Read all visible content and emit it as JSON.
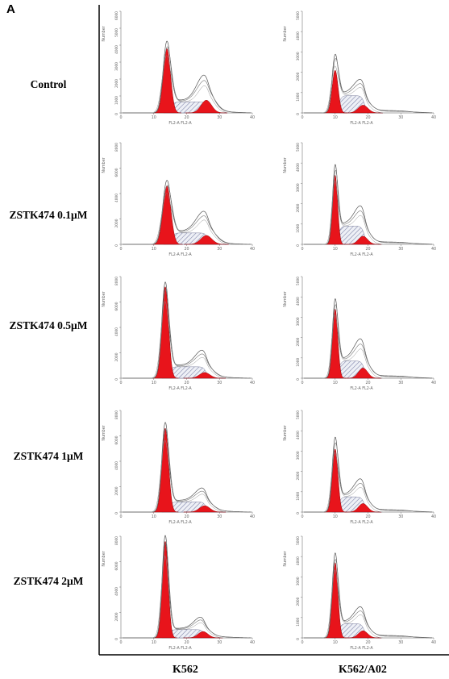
{
  "panel_letter": "A",
  "row_labels": [
    "Control",
    "ZSTK474 0.1μM",
    "ZSTK474 0.5μM",
    "ZSTK474 1μM",
    "ZSTK474 2μM"
  ],
  "column_labels": [
    "K562",
    "K562/A02"
  ],
  "colors": {
    "g1_fill": "#e8141b",
    "g2_fill": "#e8141b",
    "s_hatch": "#7a7fa6",
    "outline": "#555555"
  },
  "chart_data": [
    {
      "type": "area",
      "cell": "K562",
      "treatment": "Control",
      "xlabel": "FL2-A FL2-A",
      "ylabel": "Number",
      "xlim": [
        0,
        40
      ],
      "ylim": [
        0,
        6000
      ],
      "xticks": [
        0,
        10,
        20,
        30,
        40
      ],
      "yticks": [
        0,
        1000,
        2000,
        3000,
        4000,
        5000,
        6000
      ],
      "g1": {
        "mean": 14,
        "sd": 1.1,
        "peak": 3800
      },
      "s": {
        "height": 650
      },
      "g2": {
        "mean": 26,
        "sd": 1.6,
        "peak": 750
      },
      "fit_peak": 4200,
      "fit_g2_peak": 1500
    },
    {
      "type": "area",
      "cell": "K562/A02",
      "treatment": "Control",
      "xlabel": "FL2-A FL2-A",
      "ylabel": "Number",
      "xlim": [
        0,
        40
      ],
      "ylim": [
        0,
        5000
      ],
      "xticks": [
        0,
        10,
        20,
        30,
        40
      ],
      "yticks": [
        0,
        1000,
        2000,
        3000,
        4000,
        5000
      ],
      "g1": {
        "mean": 10,
        "sd": 0.9,
        "peak": 2100
      },
      "s": {
        "height": 850
      },
      "g2": {
        "mean": 18.5,
        "sd": 1.5,
        "peak": 380
      },
      "fit_peak": 2800,
      "fit_g2_peak": 700
    },
    {
      "type": "area",
      "cell": "K562",
      "treatment": "ZSTK474 0.1μM",
      "xlabel": "FL2-A FL2-A",
      "ylabel": "Number",
      "xlim": [
        0,
        40
      ],
      "ylim": [
        0,
        8000
      ],
      "xticks": [
        0,
        10,
        20,
        30,
        40
      ],
      "yticks": [
        0,
        2000,
        4000,
        6000,
        8000
      ],
      "g1": {
        "mean": 14,
        "sd": 1.2,
        "peak": 4600
      },
      "s": {
        "height": 900
      },
      "g2": {
        "mean": 26,
        "sd": 1.7,
        "peak": 700
      },
      "fit_peak": 5000,
      "fit_g2_peak": 1600
    },
    {
      "type": "area",
      "cell": "K562/A02",
      "treatment": "ZSTK474 0.1μM",
      "xlabel": "FL2-A FL2-A",
      "ylabel": "Number",
      "xlim": [
        0,
        40
      ],
      "ylim": [
        0,
        5000
      ],
      "xticks": [
        0,
        10,
        20,
        30,
        40
      ],
      "yticks": [
        0,
        1000,
        2000,
        3000,
        4000,
        5000
      ],
      "g1": {
        "mean": 10,
        "sd": 0.75,
        "peak": 3400
      },
      "s": {
        "height": 900
      },
      "g2": {
        "mean": 18.5,
        "sd": 1.4,
        "peak": 400
      },
      "fit_peak": 3800,
      "fit_g2_peak": 900
    },
    {
      "type": "area",
      "cell": "K562",
      "treatment": "ZSTK474 0.5μM",
      "xlabel": "FL2-A FL2-A",
      "ylabel": "Number",
      "xlim": [
        0,
        40
      ],
      "ylim": [
        0,
        8000
      ],
      "xticks": [
        0,
        10,
        20,
        30,
        40
      ],
      "yticks": [
        0,
        2000,
        4000,
        6000,
        8000
      ],
      "g1": {
        "mean": 13.5,
        "sd": 1.0,
        "peak": 7200
      },
      "s": {
        "height": 900
      },
      "g2": {
        "mean": 25.5,
        "sd": 1.6,
        "peak": 450
      },
      "fit_peak": 7500,
      "fit_g2_peak": 1200
    },
    {
      "type": "area",
      "cell": "K562/A02",
      "treatment": "ZSTK474 0.5μM",
      "xlabel": "FL2-A FL2-A",
      "ylabel": "Number",
      "xlim": [
        0,
        40
      ],
      "ylim": [
        0,
        5000
      ],
      "xticks": [
        0,
        10,
        20,
        30,
        40
      ],
      "yticks": [
        0,
        1000,
        2000,
        3000,
        4000,
        5000
      ],
      "g1": {
        "mean": 10,
        "sd": 0.8,
        "peak": 3400
      },
      "s": {
        "height": 850
      },
      "g2": {
        "mean": 18.5,
        "sd": 1.4,
        "peak": 500
      },
      "fit_peak": 3800,
      "fit_g2_peak": 1000
    },
    {
      "type": "area",
      "cell": "K562",
      "treatment": "ZSTK474 1μM",
      "xlabel": "FL2-A FL2-A",
      "ylabel": "Number",
      "xlim": [
        0,
        40
      ],
      "ylim": [
        0,
        8000
      ],
      "xticks": [
        0,
        10,
        20,
        30,
        40
      ],
      "yticks": [
        0,
        2000,
        4000,
        6000,
        8000
      ],
      "g1": {
        "mean": 13.5,
        "sd": 1.0,
        "peak": 6600
      },
      "s": {
        "height": 800
      },
      "g2": {
        "mean": 25.5,
        "sd": 1.6,
        "peak": 500
      },
      "fit_peak": 7000,
      "fit_g2_peak": 1000
    },
    {
      "type": "area",
      "cell": "K562/A02",
      "treatment": "ZSTK474 1μM",
      "xlabel": "FL2-A FL2-A",
      "ylabel": "Number",
      "xlim": [
        0,
        40
      ],
      "ylim": [
        0,
        5000
      ],
      "xticks": [
        0,
        10,
        20,
        30,
        40
      ],
      "yticks": [
        0,
        1000,
        2000,
        3000,
        4000,
        5000
      ],
      "g1": {
        "mean": 10,
        "sd": 0.85,
        "peak": 3100
      },
      "s": {
        "height": 750
      },
      "g2": {
        "mean": 18.5,
        "sd": 1.4,
        "peak": 420
      },
      "fit_peak": 3600,
      "fit_g2_peak": 800
    },
    {
      "type": "area",
      "cell": "K562",
      "treatment": "ZSTK474 2μM",
      "xlabel": "FL2-A FL2-A",
      "ylabel": "Number",
      "xlim": [
        0,
        40
      ],
      "ylim": [
        0,
        8000
      ],
      "xticks": [
        0,
        10,
        20,
        30,
        40
      ],
      "yticks": [
        0,
        2000,
        4000,
        6000,
        8000
      ],
      "g1": {
        "mean": 13.5,
        "sd": 0.9,
        "peak": 7600
      },
      "s": {
        "height": 650
      },
      "g2": {
        "mean": 25,
        "sd": 1.5,
        "peak": 500
      },
      "fit_peak": 8000,
      "fit_g2_peak": 900
    },
    {
      "type": "area",
      "cell": "K562/A02",
      "treatment": "ZSTK474 2μM",
      "xlabel": "FL2-A FL2-A",
      "ylabel": "Number",
      "xlim": [
        0,
        40
      ],
      "ylim": [
        0,
        5000
      ],
      "xticks": [
        0,
        10,
        20,
        30,
        40
      ],
      "yticks": [
        0,
        1000,
        2000,
        3000,
        4000,
        5000
      ],
      "g1": {
        "mean": 10,
        "sd": 0.85,
        "peak": 3700
      },
      "s": {
        "height": 700
      },
      "g2": {
        "mean": 18.5,
        "sd": 1.4,
        "peak": 350
      },
      "fit_peak": 4100,
      "fit_g2_peak": 750
    }
  ]
}
